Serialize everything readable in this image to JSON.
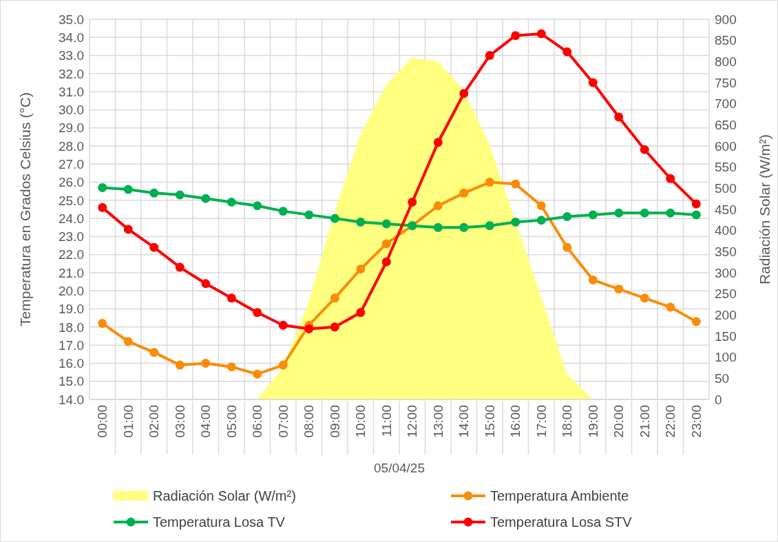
{
  "chart_data": {
    "type": "line",
    "xlabel": "05/04/25",
    "ylabel": "Temperatura en Grados Celsius (°C)",
    "y2label": "Radiación Solar (W/m²)",
    "categories": [
      "00:00",
      "01:00",
      "02:00",
      "03:00",
      "04:00",
      "05:00",
      "06:00",
      "07:00",
      "08:00",
      "09:00",
      "10:00",
      "11:00",
      "12:00",
      "13:00",
      "14:00",
      "15:00",
      "16:00",
      "17:00",
      "18:00",
      "19:00",
      "20:00",
      "21:00",
      "22:00",
      "23:00"
    ],
    "series": [
      {
        "name": "Radiación Solar (W/m²)",
        "type": "area",
        "marker": "none",
        "axis": "y2",
        "color": "#ffff80",
        "values": [
          0,
          0,
          0,
          0,
          0,
          0,
          0,
          77,
          233,
          445,
          628,
          746,
          809,
          800,
          732,
          602,
          422,
          241,
          59,
          0,
          0,
          0,
          0,
          0
        ]
      },
      {
        "name": "Temperatura Ambiente",
        "color": "#fa8c0a",
        "values": [
          18.2,
          17.2,
          16.6,
          15.9,
          16.0,
          15.8,
          15.4,
          15.9,
          18.1,
          19.6,
          21.2,
          22.6,
          23.6,
          24.7,
          25.4,
          26.0,
          25.9,
          24.7,
          22.4,
          20.6,
          20.1,
          19.6,
          19.1,
          18.3
        ]
      },
      {
        "name": "Temperatura Losa TV",
        "color": "#00b050",
        "values": [
          25.7,
          25.6,
          25.4,
          25.3,
          25.1,
          24.9,
          24.7,
          24.4,
          24.2,
          24.0,
          23.8,
          23.7,
          23.6,
          23.5,
          23.5,
          23.6,
          23.8,
          23.9,
          24.1,
          24.2,
          24.3,
          24.3,
          24.3,
          24.2
        ]
      },
      {
        "name": "Temperatura Losa STV",
        "color": "#ff0000",
        "values": [
          24.6,
          23.4,
          22.4,
          21.3,
          20.4,
          19.6,
          18.8,
          18.1,
          17.9,
          18.0,
          18.8,
          21.6,
          24.9,
          28.2,
          30.9,
          33.0,
          34.1,
          34.2,
          33.2,
          31.5,
          29.6,
          27.8,
          26.2,
          24.8
        ]
      }
    ],
    "ylim": [
      14,
      35
    ],
    "yticks": [
      {
        "value": 14,
        "label": "14.0"
      },
      {
        "value": 15,
        "label": "15.0"
      },
      {
        "value": 16,
        "label": "16.0"
      },
      {
        "value": 17,
        "label": "17.0"
      },
      {
        "value": 18,
        "label": "18.0"
      },
      {
        "value": 19,
        "label": "19.0"
      },
      {
        "value": 20,
        "label": "20.0"
      },
      {
        "value": 21,
        "label": "21.0"
      },
      {
        "value": 22,
        "label": "22.0"
      },
      {
        "value": 23,
        "label": "23.0"
      },
      {
        "value": 24,
        "label": "24.0"
      },
      {
        "value": 25,
        "label": "25.0"
      },
      {
        "value": 26,
        "label": "26.0"
      },
      {
        "value": 27,
        "label": "27.0"
      },
      {
        "value": 28,
        "label": "28.0"
      },
      {
        "value": 29,
        "label": "29.0"
      },
      {
        "value": 30,
        "label": "30.0"
      },
      {
        "value": 31,
        "label": "31.0"
      },
      {
        "value": 32,
        "label": "32.0"
      },
      {
        "value": 33,
        "label": "33.0"
      },
      {
        "value": 34,
        "label": "34.0"
      },
      {
        "value": 35,
        "label": "35.0"
      }
    ],
    "y2lim": [
      0,
      900
    ],
    "y2ticks": [
      0,
      50,
      100,
      150,
      200,
      250,
      300,
      350,
      400,
      450,
      500,
      550,
      600,
      650,
      700,
      750,
      800,
      850,
      900
    ],
    "grid": true,
    "legend": "bottom",
    "marker": "circle"
  }
}
